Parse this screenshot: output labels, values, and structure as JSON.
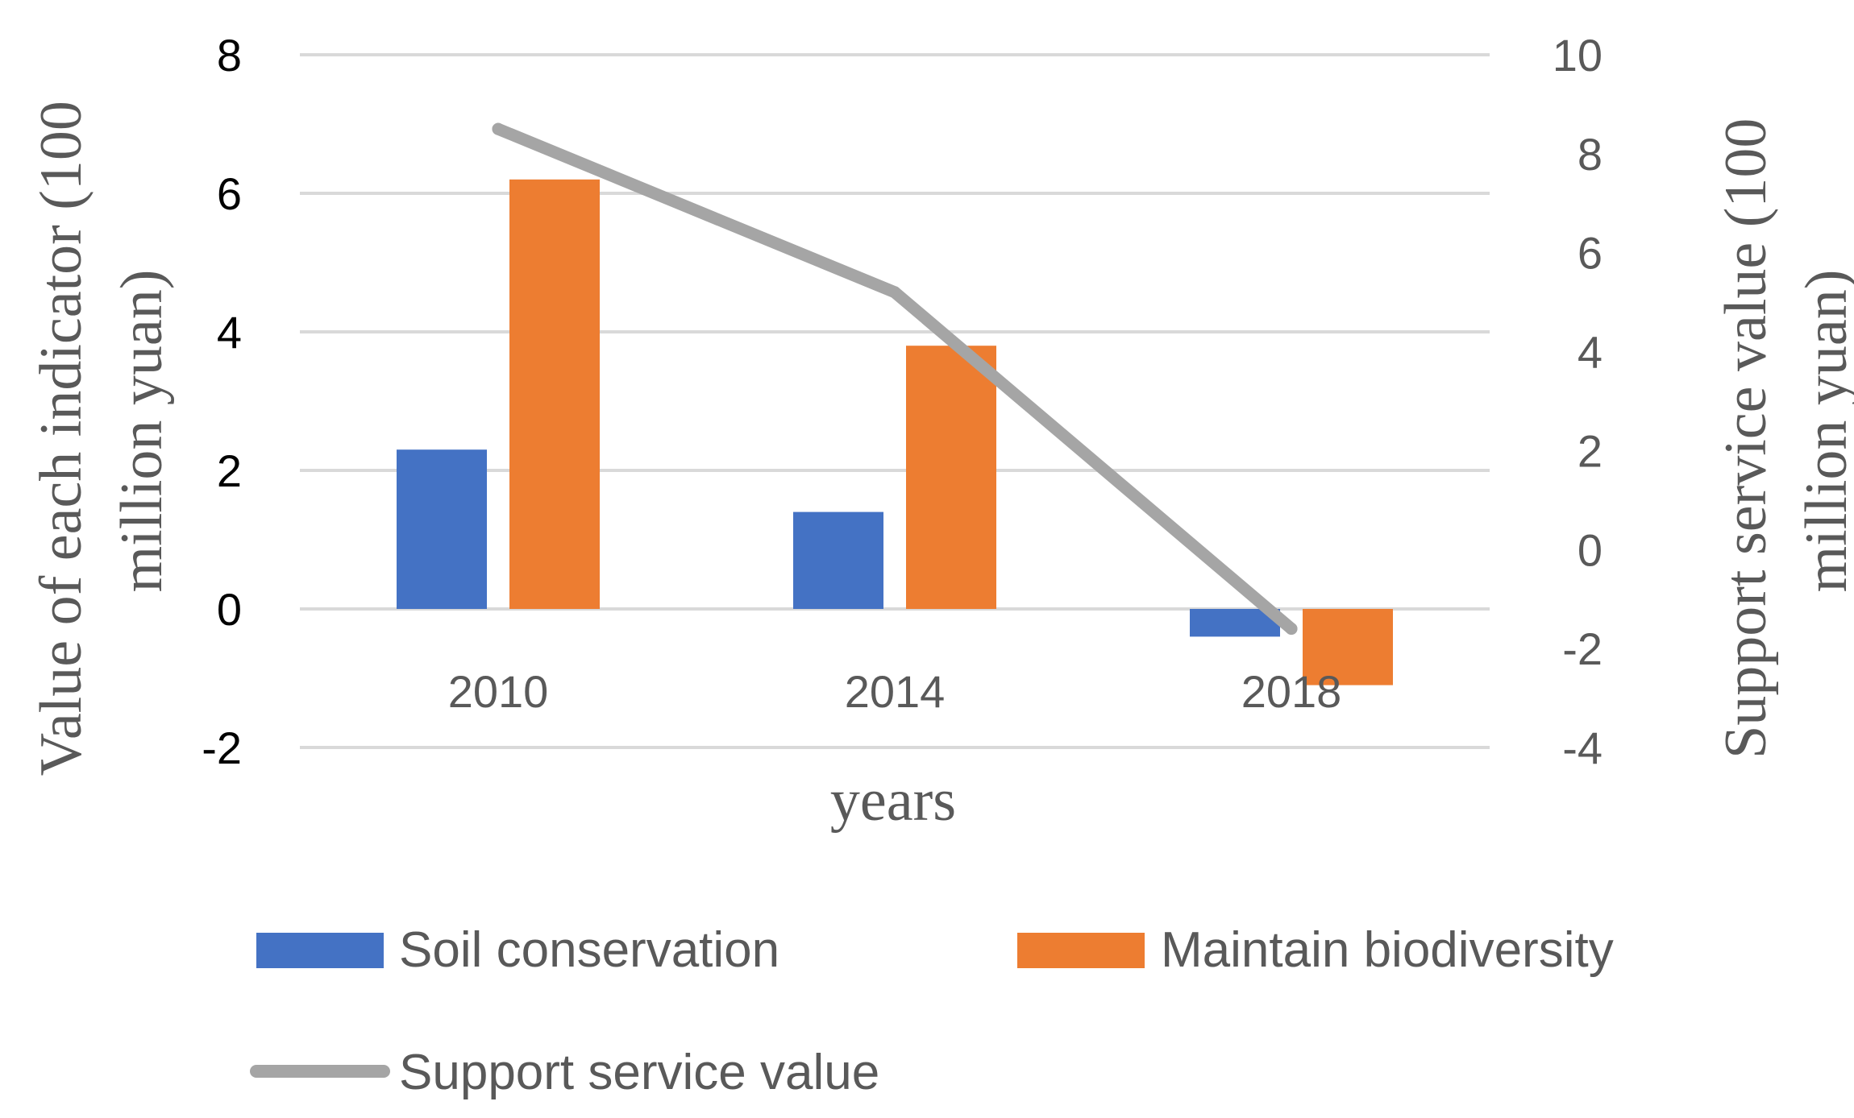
{
  "chart_data": {
    "type": "bar",
    "title": "",
    "categories": [
      "2010",
      "2014",
      "2018"
    ],
    "series": [
      {
        "name": "Soil conservation",
        "kind": "bar",
        "axis": "left",
        "color": "#4472C4",
        "values": [
          2.3,
          1.4,
          -0.4
        ]
      },
      {
        "name": "Maintain biodiversity",
        "kind": "bar",
        "axis": "left",
        "color": "#ED7D31",
        "values": [
          6.2,
          3.8,
          -1.1
        ]
      },
      {
        "name": "Support service value",
        "kind": "line",
        "axis": "right",
        "color": "#A5A5A5",
        "values": [
          8.5,
          5.2,
          -1.6
        ]
      }
    ],
    "xlabel": "years",
    "ylabel": "Value of each indicator (100 million yuan)",
    "ylabel_lines": [
      "Value of each indicator (100",
      "million yuan)"
    ],
    "ylabel_right": "Support service value (100 million yuan)",
    "ylabel_right_lines": [
      "Support service value (100",
      "million yuan)"
    ],
    "ylim": [
      -2,
      8
    ],
    "yticks": [
      "8",
      "6",
      "4",
      "2",
      "0",
      "-2"
    ],
    "ylim_right": [
      -4,
      10
    ],
    "yticks_right": [
      "10",
      "8",
      "6",
      "4",
      "2",
      "0",
      "-2",
      "-4"
    ],
    "grid": true,
    "legend_position": "bottom"
  }
}
